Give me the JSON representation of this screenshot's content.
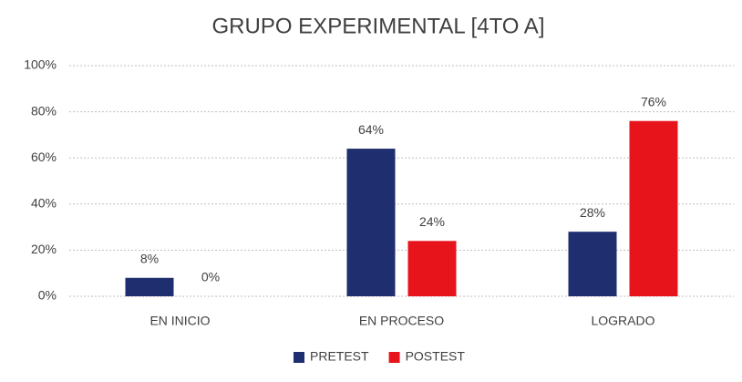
{
  "chart_data": {
    "type": "bar",
    "title": "GRUPO EXPERIMENTAL [4TO A]",
    "categories": [
      "EN INICIO",
      "EN PROCESO",
      "LOGRADO"
    ],
    "series": [
      {
        "name": "PRETEST",
        "color": "#1f2e6e",
        "values": [
          8,
          64,
          28
        ],
        "value_labels": [
          "8%",
          "64%",
          "28%"
        ]
      },
      {
        "name": "POSTEST",
        "color": "#e8141b",
        "values": [
          0,
          24,
          76
        ],
        "value_labels": [
          "0%",
          "24%",
          "76%"
        ]
      }
    ],
    "ylim": [
      0,
      100
    ],
    "yticks": [
      {
        "value": 0,
        "label": "0%"
      },
      {
        "value": 20,
        "label": "20%"
      },
      {
        "value": 40,
        "label": "40%"
      },
      {
        "value": 60,
        "label": "60%"
      },
      {
        "value": 80,
        "label": "80%"
      },
      {
        "value": 100,
        "label": "100%"
      }
    ],
    "grid": true,
    "legend": "bottom"
  }
}
